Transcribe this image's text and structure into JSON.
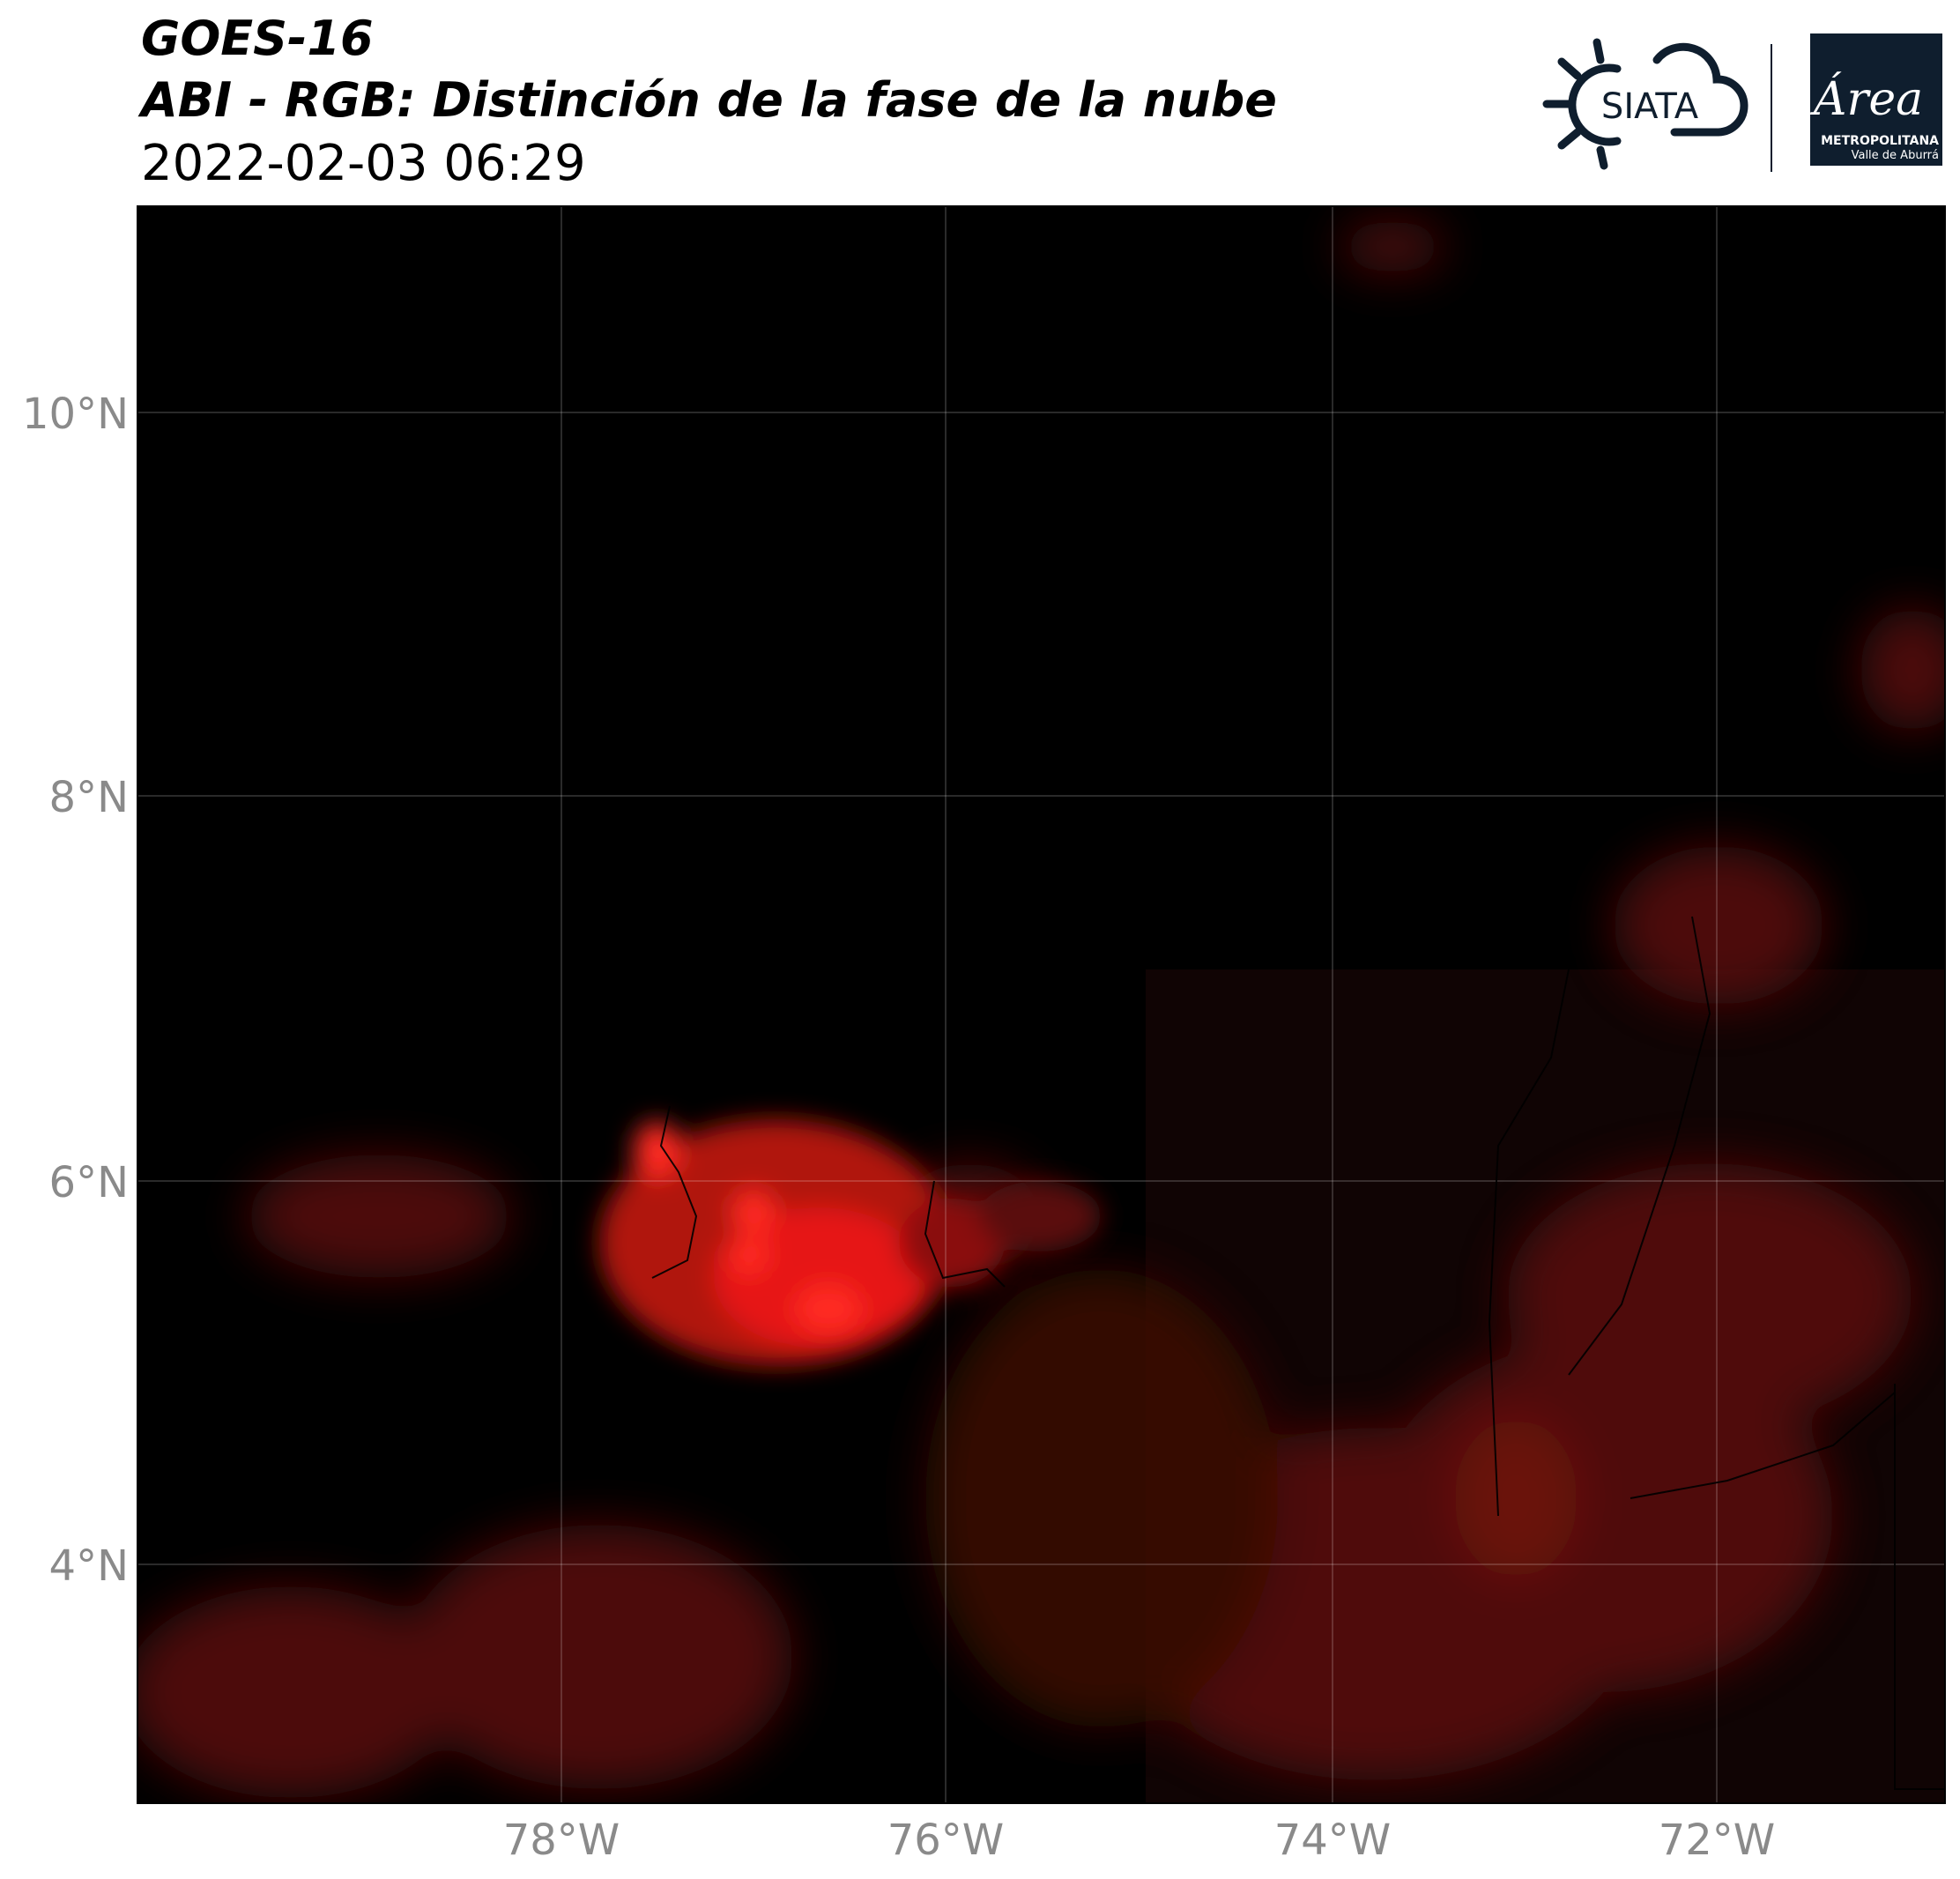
{
  "header": {
    "title": "GOES-16",
    "subtitle": "ABI - RGB: Distinción de la fase de la nube",
    "datetime": "2022-02-03 06:29"
  },
  "logos": {
    "siata": "SIATA",
    "area": "Área",
    "area_line1": "METROPOLITANA",
    "area_line2": "Valle de Aburrá"
  },
  "map": {
    "lat_labels": [
      "10°N",
      "8°N",
      "6°N",
      "4°N"
    ],
    "lon_labels": [
      "78°W",
      "76°W",
      "74°W",
      "72°W"
    ]
  }
}
